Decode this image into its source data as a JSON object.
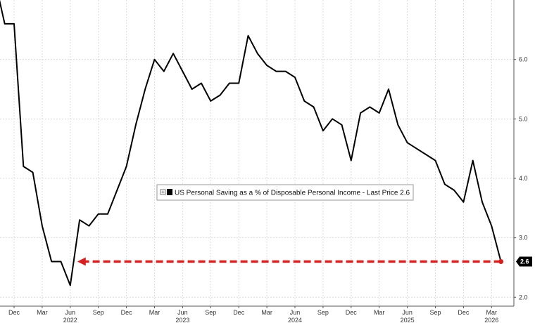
{
  "chart_data": {
    "type": "line",
    "title": "",
    "xlabel": "",
    "ylabel": "",
    "ylim": [
      1.85,
      7.0
    ],
    "xlim": [
      "2021-11",
      "2026-04"
    ],
    "y_ticks": [
      "2.0",
      "3.0",
      "4.0",
      "5.0",
      "6.0"
    ],
    "y_tick_values": [
      2.0,
      3.0,
      4.0,
      5.0,
      6.0
    ],
    "x_ticks": [
      {
        "label": "Dec",
        "date": "2021-12"
      },
      {
        "label": "Mar",
        "date": "2022-03"
      },
      {
        "label": "Jun",
        "date": "2022-06"
      },
      {
        "label": "Sep",
        "date": "2022-09"
      },
      {
        "label": "Dec",
        "date": "2022-12"
      },
      {
        "label": "Mar",
        "date": "2023-03"
      },
      {
        "label": "Jun",
        "date": "2023-06"
      },
      {
        "label": "Sep",
        "date": "2023-09"
      },
      {
        "label": "Dec",
        "date": "2023-12"
      },
      {
        "label": "Mar",
        "date": "2024-03"
      },
      {
        "label": "Jun",
        "date": "2024-06"
      },
      {
        "label": "Sep",
        "date": "2024-09"
      },
      {
        "label": "Dec",
        "date": "2024-12"
      },
      {
        "label": "Mar",
        "date": "2025-03"
      },
      {
        "label": "Jun",
        "date": "2025-06"
      },
      {
        "label": "Sep",
        "date": "2025-09"
      },
      {
        "label": "Dec",
        "date": "2025-12"
      },
      {
        "label": "Mar",
        "date": "2026-03"
      }
    ],
    "year_labels": [
      {
        "label": "2022",
        "date": "2022-06"
      },
      {
        "label": "2023",
        "date": "2023-06"
      },
      {
        "label": "2024",
        "date": "2024-06"
      },
      {
        "label": "2025",
        "date": "2025-06"
      },
      {
        "label": "2026",
        "date": "2026-03"
      }
    ],
    "series": [
      {
        "name": "US Personal Saving as a % of Disposable Personal Income - Last Price 2.6",
        "color": "#000000",
        "x": [
          "2021-10",
          "2021-11",
          "2021-12",
          "2022-01",
          "2022-02",
          "2022-03",
          "2022-04",
          "2022-05",
          "2022-06",
          "2022-07",
          "2022-08",
          "2022-09",
          "2022-10",
          "2022-11",
          "2022-12",
          "2023-01",
          "2023-02",
          "2023-03",
          "2023-04",
          "2023-05",
          "2023-06",
          "2023-07",
          "2023-08",
          "2023-09",
          "2023-10",
          "2023-11",
          "2023-12",
          "2024-01",
          "2024-02",
          "2024-03",
          "2024-04",
          "2024-05",
          "2024-06",
          "2024-07",
          "2024-08",
          "2024-09",
          "2024-10",
          "2024-11",
          "2024-12",
          "2025-01",
          "2025-02",
          "2025-03",
          "2025-04",
          "2025-05",
          "2025-06",
          "2025-07",
          "2025-08",
          "2025-09",
          "2025-10",
          "2025-11",
          "2025-12",
          "2026-01",
          "2026-02",
          "2026-03",
          "2026-04"
        ],
        "values": [
          7.3,
          6.6,
          6.6,
          4.2,
          4.1,
          3.2,
          2.6,
          2.6,
          2.2,
          3.3,
          3.2,
          3.4,
          3.4,
          3.8,
          4.2,
          4.9,
          5.5,
          6.0,
          5.8,
          6.1,
          5.8,
          5.5,
          5.6,
          5.3,
          5.4,
          5.6,
          5.6,
          6.4,
          6.1,
          5.9,
          5.8,
          5.8,
          5.7,
          5.3,
          5.2,
          4.8,
          5.0,
          4.9,
          4.3,
          5.1,
          5.2,
          5.1,
          5.5,
          4.9,
          4.6,
          4.5,
          4.4,
          4.3,
          3.9,
          3.8,
          3.6,
          4.3,
          3.6,
          3.2,
          2.6
        ]
      }
    ],
    "last_value_label": "2.6",
    "annotations": [
      {
        "type": "dashed-arrow",
        "color": "#d42020",
        "from": {
          "x": "2026-04",
          "y": 2.6
        },
        "to": {
          "x": "2022-06",
          "y": 2.6
        }
      }
    ],
    "grid": true,
    "legend": {
      "placement": "center"
    }
  }
}
